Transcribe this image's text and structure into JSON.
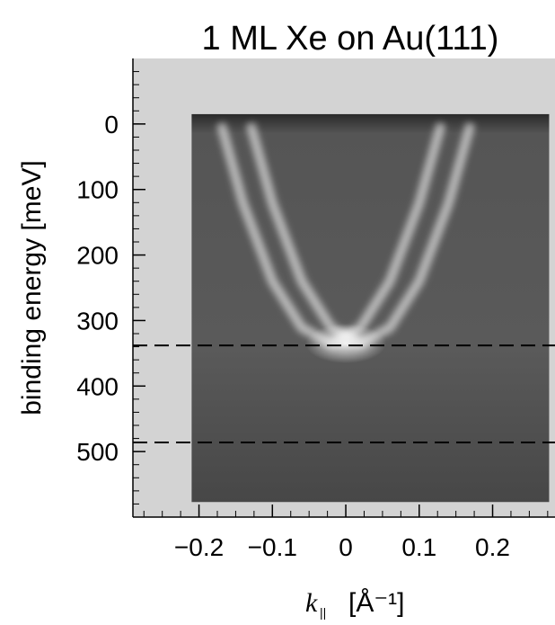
{
  "chart_data": {
    "type": "image",
    "title": "1 ML Xe on Au(111)",
    "ylabel": "binding energy  [meV]",
    "xlabel": "k",
    "xlabel_sub": "||",
    "xlabel_unit": "[Å⁻¹]",
    "xlim": [
      -0.29,
      0.285
    ],
    "ylim": [
      600,
      -100
    ],
    "xticks": [
      {
        "value": -0.2,
        "label": "−0.2"
      },
      {
        "value": -0.1,
        "label": "−0.1"
      },
      0,
      0.1,
      0.2
    ],
    "yticks": [
      0,
      100,
      200,
      300,
      400,
      500
    ],
    "xticks_minor": [
      -0.275,
      -0.25,
      -0.225,
      -0.2,
      -0.175,
      -0.15,
      -0.125,
      -0.1,
      -0.075,
      -0.05,
      -0.025,
      0,
      0.025,
      0.05,
      0.075,
      0.1,
      0.125,
      0.15,
      0.175,
      0.2,
      0.225,
      0.25,
      0.275
    ],
    "yticks_minor": [
      -80,
      -60,
      -40,
      -20,
      0,
      20,
      40,
      60,
      80,
      100,
      120,
      140,
      160,
      180,
      200,
      220,
      240,
      260,
      280,
      300,
      320,
      340,
      360,
      380,
      400,
      420,
      440,
      460,
      480,
      500,
      520,
      540,
      560,
      580
    ],
    "image_extent": {
      "x": [
        -0.21,
        0.277
      ],
      "y": [
        -15,
        577
      ]
    },
    "series": [
      {
        "color": "#ffffff",
        "x": [
          -0.17,
          -0.14,
          -0.1,
          -0.06,
          -0.02,
          0.02,
          0.06,
          0.1,
          0.13
        ],
        "values": [
          0,
          121,
          240,
          311,
          335,
          311,
          240,
          121,
          0
        ]
      },
      {
        "color": "#ffffff",
        "x": [
          -0.13,
          -0.1,
          -0.06,
          -0.02,
          0.02,
          0.06,
          0.1,
          0.14,
          0.17
        ],
        "values": [
          0,
          121,
          240,
          311,
          335,
          311,
          240,
          121,
          0
        ]
      }
    ],
    "hlines": [
      338,
      486
    ]
  }
}
